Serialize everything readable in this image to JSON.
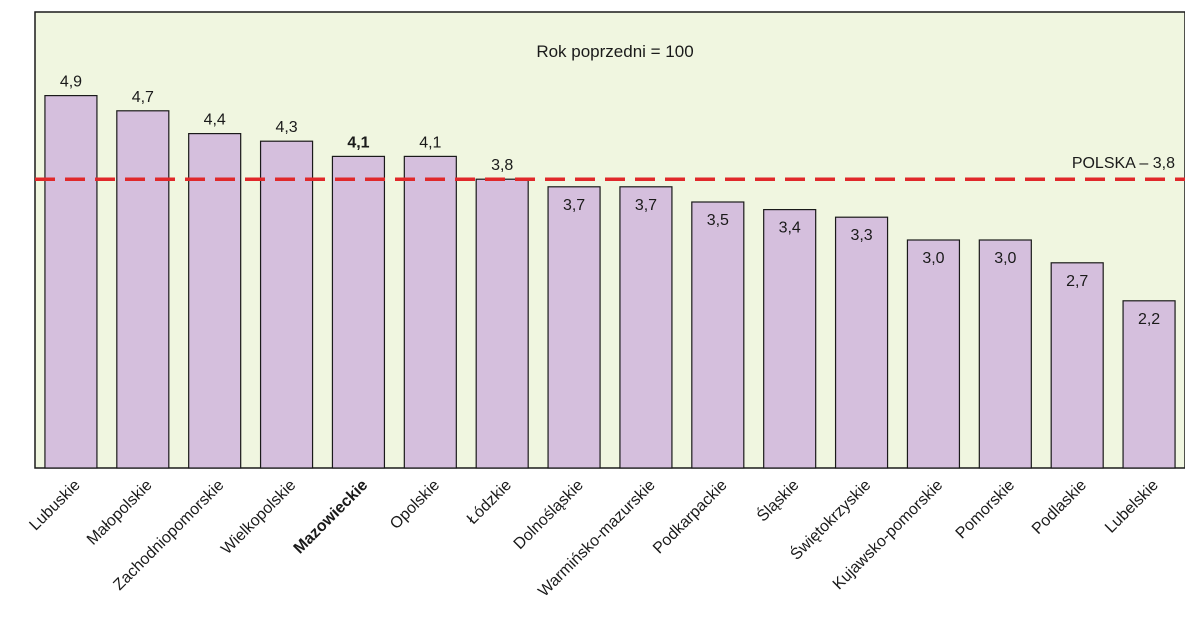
{
  "chart_data": {
    "type": "bar",
    "title": "Rok poprzedni = 100",
    "categories": [
      "Lubuskie",
      "Małopolskie",
      "Zachodniopomorskie",
      "Wielkopolskie",
      "Mazowieckie",
      "Opolskie",
      "Łódzkie",
      "Dolnośląskie",
      "Warmińsko-mazurskie",
      "Podkarpackie",
      "Śląskie",
      "Świętokrzyskie",
      "Kujawsko-pomorskie",
      "Pomorskie",
      "Podlaskie",
      "Lubelskie"
    ],
    "values": [
      4.9,
      4.7,
      4.4,
      4.3,
      4.1,
      4.1,
      3.8,
      3.7,
      3.7,
      3.5,
      3.4,
      3.3,
      3.0,
      3.0,
      2.7,
      2.2
    ],
    "value_labels": [
      "4,9",
      "4,7",
      "4,4",
      "4,3",
      "4,1",
      "4,1",
      "3,8",
      "3,7",
      "3,7",
      "3,5",
      "3,4",
      "3,3",
      "3,0",
      "3,0",
      "2,7",
      "2,2"
    ],
    "label_inside": [
      false,
      false,
      false,
      false,
      false,
      false,
      false,
      true,
      true,
      true,
      true,
      true,
      true,
      true,
      true,
      true
    ],
    "highlight_category": "Mazowieckie",
    "reference_line": {
      "value": 3.8,
      "label": "POLSKA – 3,8",
      "color": "#e0282a"
    },
    "colors": {
      "plot_background": "#f0f6e0",
      "bar_fill": "#d5bfdd",
      "bar_stroke": "#1a1a1a",
      "axis": "#1a1a1a"
    },
    "xlabel": "",
    "ylabel": "",
    "grid": false,
    "legend": "none"
  }
}
